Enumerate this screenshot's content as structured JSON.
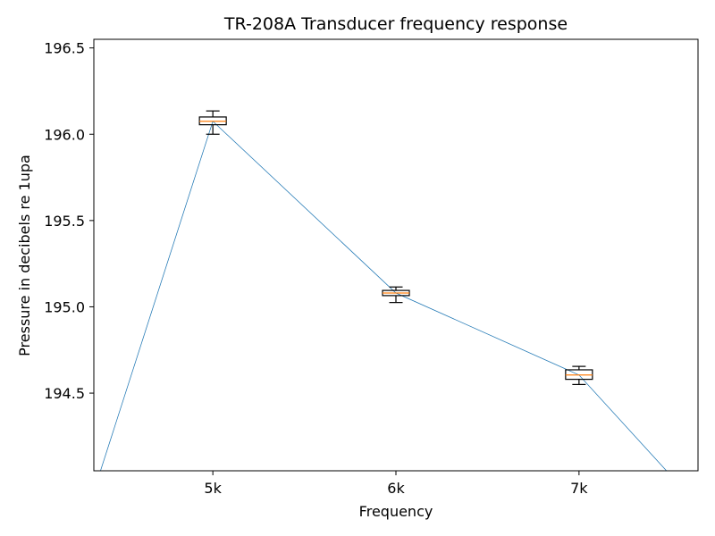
{
  "chart_data": {
    "type": "box",
    "title": "TR-208A Transducer frequency response",
    "xlabel": "Frequency",
    "ylabel": "Pressure in decibels re 1upa",
    "categories": [
      "5k",
      "6k",
      "7k"
    ],
    "x_values": [
      5000,
      6000,
      7000
    ],
    "xlim": [
      4350,
      7650
    ],
    "ylim": [
      194.05,
      196.55
    ],
    "yticks": [
      194.5,
      195.0,
      195.5,
      196.0,
      196.5
    ],
    "ytick_labels": [
      "194.5",
      "195.0",
      "195.5",
      "196.0",
      "196.5"
    ],
    "grid": false,
    "boxes": [
      {
        "category": "5k",
        "x": 5000,
        "whisker_low": 196.0,
        "q1": 196.055,
        "median": 196.075,
        "q3": 196.1,
        "whisker_high": 196.135
      },
      {
        "category": "6k",
        "x": 6000,
        "whisker_low": 195.025,
        "q1": 195.065,
        "median": 195.08,
        "q3": 195.095,
        "whisker_high": 195.115
      },
      {
        "category": "7k",
        "x": 7000,
        "whisker_low": 194.55,
        "q1": 194.58,
        "median": 194.605,
        "q3": 194.635,
        "whisker_high": 194.655
      }
    ],
    "line": {
      "x": [
        4350,
        5000,
        6000,
        7000,
        7650
      ],
      "y": [
        193.93,
        196.075,
        195.08,
        194.605,
        193.85
      ]
    },
    "colors": {
      "line": "#1f77b4",
      "median": "#ff7f0e",
      "box": "#000000"
    }
  }
}
